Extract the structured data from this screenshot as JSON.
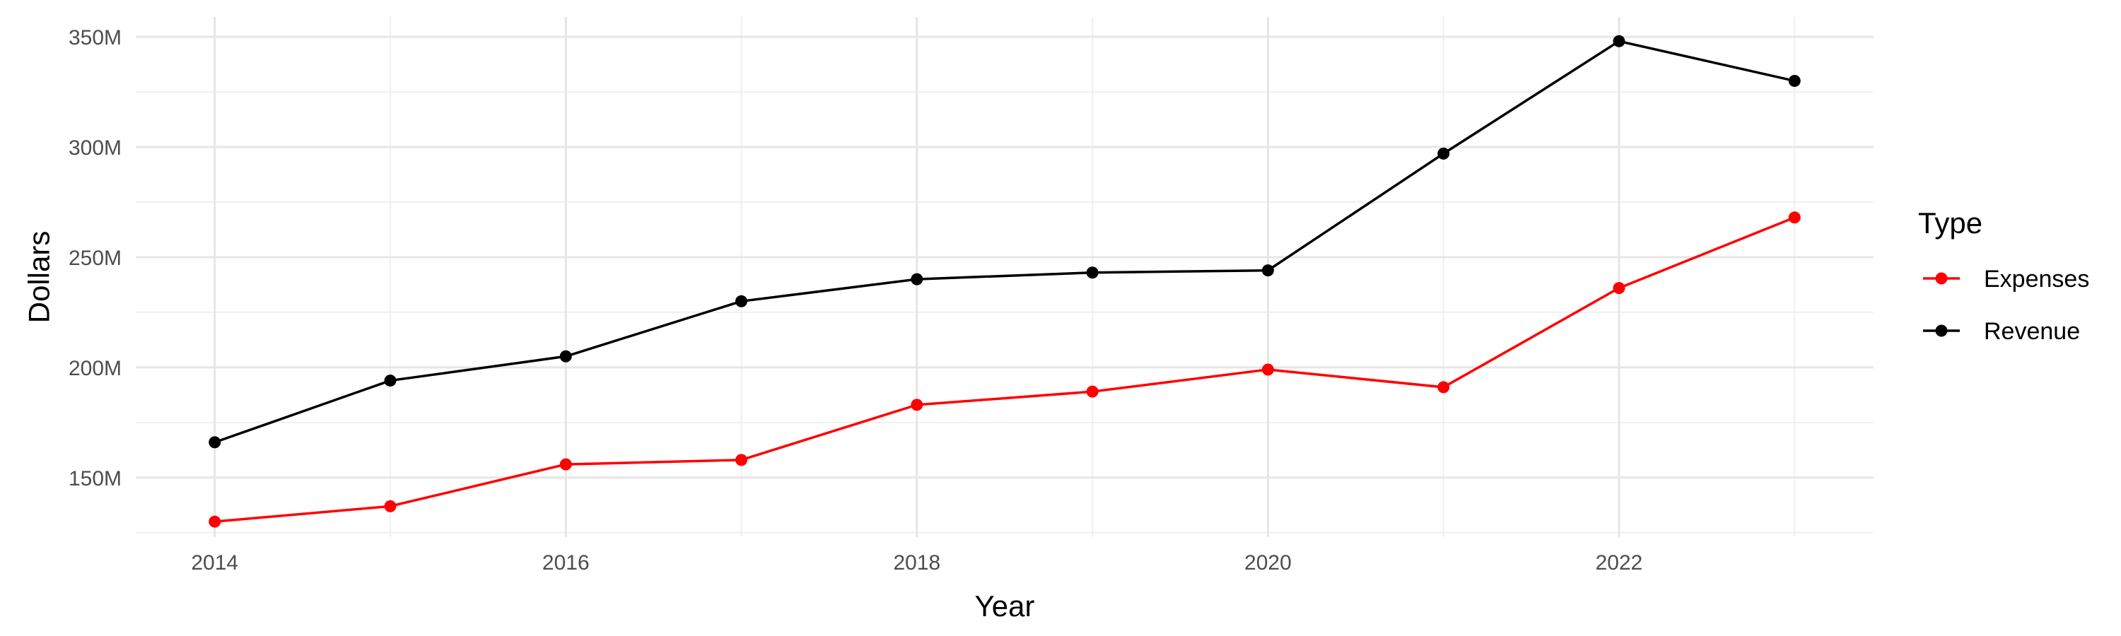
{
  "chart_data": {
    "type": "line",
    "title": "",
    "xlabel": "Year",
    "ylabel": "Dollars",
    "x": [
      2014,
      2015,
      2016,
      2017,
      2018,
      2019,
      2020,
      2021,
      2022,
      2023
    ],
    "xlim": [
      2013.55,
      2023.45
    ],
    "ylim": [
      123,
      359
    ],
    "x_ticks": [
      2014,
      2016,
      2018,
      2020,
      2022
    ],
    "x_tick_labels": [
      "2014",
      "2016",
      "2018",
      "2020",
      "2022"
    ],
    "y_ticks": [
      150,
      200,
      250,
      300,
      350
    ],
    "y_tick_labels": [
      "150M",
      "200M",
      "250M",
      "300M",
      "350M"
    ],
    "y_unit": "millions of dollars",
    "grid": true,
    "legend": {
      "title": "Type",
      "position": "right"
    },
    "series": [
      {
        "name": "Expenses",
        "color": "#ff0000",
        "values": [
          130,
          137,
          156,
          158,
          183,
          189,
          199,
          191,
          236,
          268
        ]
      },
      {
        "name": "Revenue",
        "color": "#000000",
        "values": [
          166,
          194,
          205,
          230,
          240,
          243,
          244,
          297,
          348,
          330
        ]
      }
    ]
  }
}
